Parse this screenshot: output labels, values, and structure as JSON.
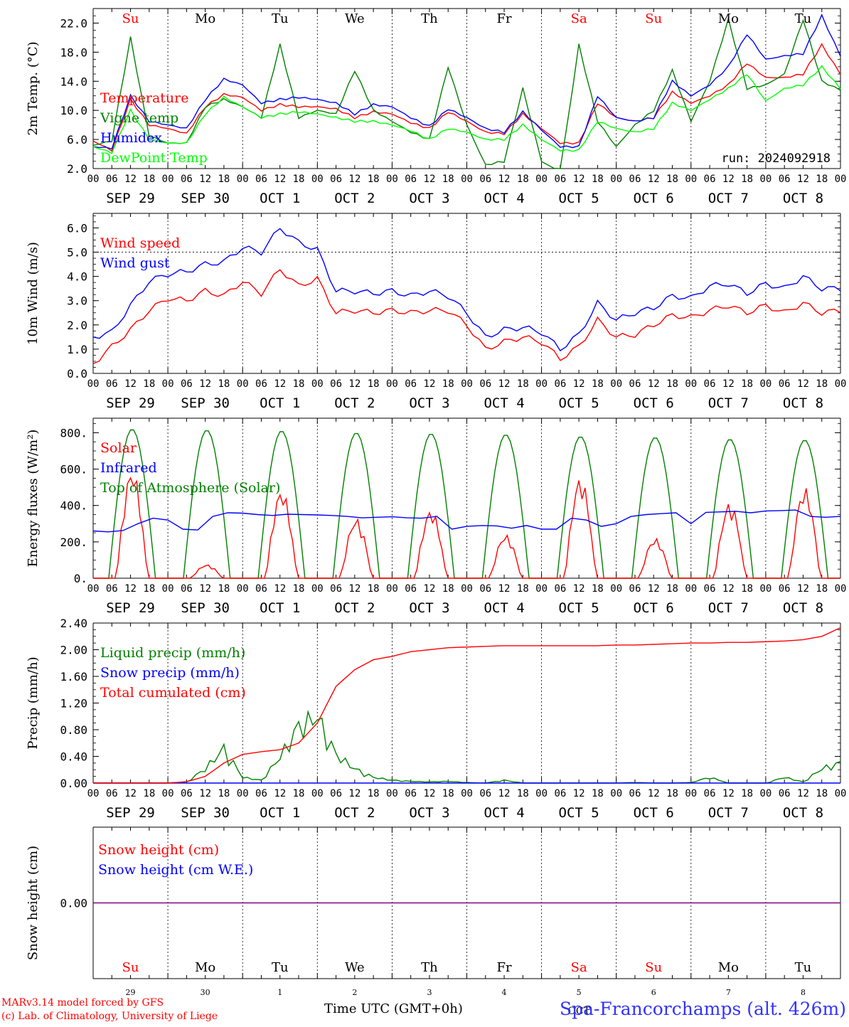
{
  "chart_data": [
    {
      "type": "line",
      "ylabel": "2m Temp. (°C)",
      "ylim": [
        2.0,
        24.0
      ],
      "yticks": [
        "2.0",
        "6.0",
        "10.0",
        "14.0",
        "18.0",
        "22.0"
      ],
      "ytick_values": [
        2,
        6,
        10,
        14,
        18,
        22
      ],
      "x_hours": [
        0,
        6,
        12,
        18,
        24,
        30,
        36,
        42,
        48,
        54,
        60,
        66,
        72,
        78,
        84,
        90,
        96,
        102,
        108,
        114,
        120,
        126,
        132,
        138,
        144,
        150,
        156,
        162,
        168,
        174,
        180,
        186,
        192,
        198,
        204,
        210,
        216,
        222,
        228,
        234,
        240
      ],
      "run_label": "run: 2024092918",
      "series": [
        {
          "name": "Temperature",
          "color": "#ff0000",
          "values": [
            5.8,
            4.5,
            11.5,
            8.0,
            7.5,
            6.8,
            10.5,
            12.2,
            11.8,
            10.0,
            10.8,
            10.5,
            10.5,
            10.2,
            9.0,
            9.8,
            9.5,
            8.3,
            7.5,
            9.8,
            8.5,
            7.0,
            6.8,
            9.5,
            7.5,
            5.5,
            5.5,
            11.0,
            9.0,
            8.5,
            9.0,
            12.5,
            11.0,
            12.0,
            13.5,
            16.5,
            14.5,
            14.5,
            15.0,
            19.0,
            15.0
          ]
        },
        {
          "name": "Vigne temp",
          "color": "#008000",
          "values": [
            5.2,
            5.8,
            20.0,
            6.5,
            5.5,
            5.5,
            10.5,
            11.5,
            10.5,
            9.0,
            19.0,
            9.0,
            10.0,
            9.5,
            15.5,
            10.0,
            8.5,
            7.0,
            6.0,
            16.0,
            8.0,
            2.5,
            3.0,
            13.0,
            3.0,
            1.5,
            19.0,
            8.5,
            5.0,
            8.0,
            10.0,
            15.5,
            8.5,
            14.0,
            22.5,
            13.0,
            13.5,
            15.0,
            22.5,
            14.0,
            12.8
          ]
        },
        {
          "name": "Humidex",
          "color": "#0000ff",
          "values": [
            5.0,
            4.8,
            12.0,
            8.5,
            8.0,
            7.5,
            11.5,
            14.3,
            13.5,
            11.0,
            11.5,
            11.8,
            11.5,
            11.0,
            9.5,
            10.8,
            10.5,
            9.0,
            7.8,
            10.2,
            9.0,
            7.5,
            7.0,
            9.8,
            7.3,
            5.0,
            5.0,
            12.0,
            9.0,
            8.5,
            9.0,
            14.0,
            12.0,
            13.5,
            16.0,
            20.5,
            17.0,
            17.5,
            17.8,
            23.0,
            17.5
          ]
        },
        {
          "name": "DewPoint Temp",
          "color": "#00ff00",
          "values": [
            5.0,
            4.2,
            10.0,
            6.0,
            5.5,
            5.5,
            9.5,
            11.8,
            10.5,
            9.0,
            9.5,
            9.8,
            9.5,
            9.0,
            8.5,
            8.5,
            8.0,
            7.2,
            6.0,
            7.5,
            7.0,
            6.0,
            6.0,
            8.0,
            6.0,
            4.5,
            4.5,
            8.5,
            7.5,
            7.0,
            7.5,
            11.0,
            10.0,
            11.5,
            13.0,
            15.0,
            11.3,
            13.0,
            13.5,
            16.0,
            13.0
          ]
        }
      ]
    },
    {
      "type": "line",
      "ylabel": "10m Wind (m/s)",
      "ylim": [
        0.0,
        6.6
      ],
      "yticks": [
        "0.0",
        "1.0",
        "2.0",
        "3.0",
        "4.0",
        "5.0",
        "6.0"
      ],
      "ytick_values": [
        0,
        1,
        2,
        3,
        4,
        5,
        6
      ],
      "ref_line": 5.0,
      "x_hours": [
        0,
        6,
        12,
        18,
        24,
        30,
        36,
        42,
        48,
        54,
        60,
        66,
        72,
        78,
        84,
        90,
        96,
        102,
        108,
        114,
        120,
        126,
        132,
        138,
        144,
        150,
        156,
        162,
        168,
        174,
        180,
        186,
        192,
        198,
        204,
        210,
        216,
        222,
        228,
        234,
        240
      ],
      "series": [
        {
          "name": "Wind speed",
          "color": "#ff0000",
          "values": [
            0.4,
            1.1,
            1.8,
            2.6,
            3.1,
            3.0,
            3.4,
            3.2,
            3.8,
            3.3,
            4.3,
            3.6,
            3.9,
            2.5,
            2.6,
            2.5,
            2.6,
            2.5,
            2.6,
            2.6,
            2.0,
            1.0,
            1.3,
            1.5,
            1.3,
            0.6,
            1.1,
            2.2,
            1.5,
            1.6,
            2.0,
            2.4,
            2.3,
            2.6,
            2.8,
            2.5,
            2.8,
            2.5,
            2.9,
            2.5,
            2.6
          ]
        },
        {
          "name": "Wind gust",
          "color": "#0000ff",
          "values": [
            1.5,
            1.7,
            2.8,
            3.8,
            4.1,
            4.2,
            4.5,
            4.6,
            5.2,
            5.0,
            6.0,
            5.4,
            5.1,
            3.4,
            3.4,
            3.3,
            3.4,
            3.2,
            3.4,
            3.2,
            2.5,
            1.5,
            1.8,
            1.9,
            1.7,
            1.0,
            1.6,
            2.9,
            2.2,
            2.5,
            2.7,
            3.2,
            3.1,
            3.6,
            3.7,
            3.3,
            3.7,
            3.5,
            4.0,
            3.5,
            3.5
          ]
        }
      ]
    },
    {
      "type": "line",
      "ylabel": "Energy fluxes (W/m²)",
      "ylim": [
        0,
        880
      ],
      "yticks": [
        "0.",
        "200.",
        "400.",
        "600.",
        "800."
      ],
      "ytick_values": [
        0,
        200,
        400,
        600,
        800
      ],
      "series": [
        {
          "name": "Solar",
          "color": "#ff0000",
          "daily_peaks": [
            600,
            75,
            490,
            330,
            380,
            240,
            560,
            220,
            420,
            500
          ]
        },
        {
          "name": "Infrared",
          "color": "#0000ff",
          "hourly_values": [
            260,
            255,
            262,
            300,
            330,
            320,
            270,
            265,
            340,
            360,
            358,
            350,
            345,
            352,
            350,
            348,
            345,
            340,
            332,
            335,
            338,
            332,
            330,
            340,
            270,
            285,
            290,
            288,
            275,
            290,
            270,
            270,
            330,
            320,
            285,
            300,
            340,
            350,
            355,
            360,
            300,
            362,
            365,
            368,
            360,
            370,
            372,
            375,
            340,
            335,
            340
          ]
        },
        {
          "name": "Top of Atmosphere (Solar)",
          "color": "#008000",
          "daily_peaks": [
            820,
            815,
            810,
            800,
            795,
            790,
            780,
            775,
            765,
            760
          ]
        }
      ]
    },
    {
      "type": "line",
      "ylabel": "Precip (mm/h)",
      "ylim": [
        0.0,
        2.4
      ],
      "yticks": [
        "0.00",
        "0.40",
        "0.80",
        "1.20",
        "1.60",
        "2.00",
        "2.40"
      ],
      "ytick_values": [
        0,
        0.4,
        0.8,
        1.2,
        1.6,
        2.0,
        2.4
      ],
      "x_hours": [
        0,
        6,
        12,
        18,
        24,
        30,
        36,
        42,
        48,
        54,
        60,
        66,
        72,
        78,
        84,
        90,
        96,
        102,
        108,
        114,
        120,
        126,
        132,
        138,
        144,
        150,
        156,
        162,
        168,
        174,
        180,
        186,
        192,
        198,
        204,
        210,
        216,
        222,
        228,
        234,
        240
      ],
      "series": [
        {
          "name": "Liquid precip (mm/h)",
          "color": "#008000",
          "values": [
            0,
            0,
            0,
            0,
            0,
            0.02,
            0.25,
            0.6,
            0.1,
            0.05,
            0.45,
            1.0,
            1.15,
            0.5,
            0.25,
            0.1,
            0.05,
            0.03,
            0.02,
            0.03,
            0.01,
            0,
            0.05,
            0,
            0,
            0,
            0,
            0,
            0,
            0.01,
            0,
            0,
            0.01,
            0.1,
            0,
            0,
            0,
            0.1,
            0.02,
            0.25,
            0.35
          ]
        },
        {
          "name": "Snow precip (mm/h)",
          "color": "#0000ff",
          "values": [
            0,
            0,
            0,
            0,
            0,
            0,
            0,
            0,
            0,
            0,
            0,
            0,
            0,
            0,
            0,
            0,
            0,
            0,
            0,
            0,
            0,
            0,
            0,
            0,
            0,
            0,
            0,
            0,
            0,
            0,
            0,
            0,
            0,
            0,
            0,
            0,
            0,
            0,
            0,
            0,
            0
          ]
        },
        {
          "name": "Total cumulated (cm)",
          "color": "#ff0000",
          "values": [
            0,
            0,
            0,
            0,
            0,
            0.02,
            0.1,
            0.3,
            0.43,
            0.47,
            0.5,
            0.6,
            0.9,
            1.45,
            1.7,
            1.85,
            1.9,
            1.97,
            2.0,
            2.03,
            2.04,
            2.05,
            2.06,
            2.06,
            2.06,
            2.06,
            2.06,
            2.06,
            2.07,
            2.07,
            2.08,
            2.09,
            2.1,
            2.1,
            2.11,
            2.11,
            2.12,
            2.13,
            2.15,
            2.2,
            2.33
          ]
        }
      ]
    },
    {
      "type": "line",
      "ylabel": "Snow height (cm)",
      "ylim": [
        -1,
        1
      ],
      "yticks": [
        "0.00"
      ],
      "ytick_values": [
        0
      ],
      "series": [
        {
          "name": "Snow height (cm)",
          "color": "#ff0000",
          "values": [
            0,
            0
          ]
        },
        {
          "name": "Snow height (cm W.E.)",
          "color": "#0000ff",
          "values": [
            0,
            0
          ]
        }
      ]
    }
  ],
  "hour_labels": [
    "00",
    "06",
    "12",
    "18"
  ],
  "date_labels": [
    "SEP 29",
    "SEP 30",
    "OCT  1",
    "OCT  2",
    "OCT  3",
    "OCT  4",
    "OCT  5",
    "OCT  6",
    "OCT  7",
    "OCT  8"
  ],
  "weekdays": [
    {
      "label": "Su",
      "color": "#ff0000"
    },
    {
      "label": "Mo",
      "color": "#000000"
    },
    {
      "label": "Tu",
      "color": "#000000"
    },
    {
      "label": "We",
      "color": "#000000"
    },
    {
      "label": "Th",
      "color": "#000000"
    },
    {
      "label": "Fr",
      "color": "#000000"
    },
    {
      "label": "Sa",
      "color": "#ff0000"
    },
    {
      "label": "Su",
      "color": "#ff0000"
    },
    {
      "label": "Mo",
      "color": "#000000"
    },
    {
      "label": "Tu",
      "color": "#000000"
    }
  ],
  "day_numbers": [
    "29",
    "30",
    "1",
    "2",
    "3",
    "4",
    "5",
    "6",
    "7",
    "8"
  ],
  "month_label": "OCT",
  "footer": {
    "credit_line1": "MARv3.14 model forced by GFS",
    "credit_line2": "(c) Lab. of Climatology, University of Liege",
    "xlabel": "Time UTC (GMT+0h)",
    "station": "Spa-Francorchamps (alt. 426m)"
  }
}
